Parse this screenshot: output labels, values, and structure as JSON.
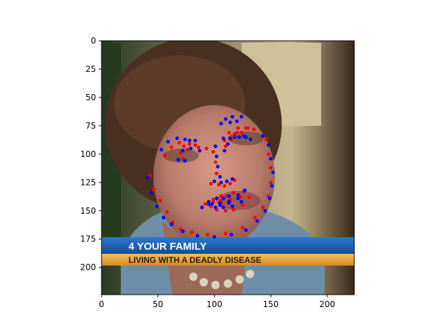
{
  "chart_data": {
    "type": "scatter",
    "title": "",
    "xlabel": "",
    "ylabel": "",
    "xlim": [
      0,
      224
    ],
    "ylim": [
      224,
      0
    ],
    "x_ticks": [
      0,
      50,
      100,
      150,
      200
    ],
    "y_ticks": [
      0,
      25,
      50,
      75,
      100,
      125,
      150,
      175,
      200
    ],
    "grid": false,
    "legend": "none",
    "background_image": {
      "description_icon": "photo-woman-face-icon",
      "caption_lines": [
        "4 YOUR FAMILY",
        "LIVING WITH A DEADLY DISEASE"
      ],
      "caption_bar_color": "#1f5fb0",
      "caption_strip_color": "#e8a93a"
    },
    "series": [
      {
        "color": "#ff0000",
        "points": [
          [
            43,
            119
          ],
          [
            46,
            131
          ],
          [
            52,
            141
          ],
          [
            58,
            151
          ],
          [
            63,
            160
          ],
          [
            70,
            166
          ],
          [
            80,
            169
          ],
          [
            94,
            171
          ],
          [
            110,
            170
          ],
          [
            125,
            165
          ],
          [
            136,
            156
          ],
          [
            143,
            147
          ],
          [
            148,
            137
          ],
          [
            150,
            125
          ],
          [
            150,
            112
          ],
          [
            148,
            100
          ],
          [
            146,
            87
          ],
          [
            72,
            104
          ],
          [
            70,
            99
          ],
          [
            73,
            93
          ],
          [
            83,
            92
          ],
          [
            93,
            95
          ],
          [
            110,
            93
          ],
          [
            115,
            87
          ],
          [
            120,
            81
          ],
          [
            128,
            77
          ],
          [
            135,
            78
          ],
          [
            99,
            98
          ],
          [
            101,
            107
          ],
          [
            102,
            117
          ],
          [
            97,
            126
          ],
          [
            104,
            127
          ],
          [
            109,
            128
          ],
          [
            114,
            126
          ],
          [
            118,
            123
          ],
          [
            56,
            101
          ],
          [
            62,
            94
          ],
          [
            69,
            90
          ],
          [
            78,
            91
          ],
          [
            86,
            94
          ],
          [
            76,
            96
          ],
          [
            109,
            88
          ],
          [
            113,
            81
          ],
          [
            121,
            77
          ],
          [
            130,
            77
          ],
          [
            124,
            81
          ],
          [
            118,
            82
          ],
          [
            92,
            144
          ],
          [
            99,
            140
          ],
          [
            106,
            137
          ],
          [
            111,
            137
          ],
          [
            117,
            134
          ],
          [
            126,
            133
          ],
          [
            131,
            138
          ],
          [
            125,
            145
          ],
          [
            117,
            149
          ],
          [
            110,
            150
          ],
          [
            102,
            149
          ],
          [
            97,
            146
          ],
          [
            99,
            142
          ],
          [
            106,
            141
          ],
          [
            114,
            140
          ],
          [
            123,
            138
          ],
          [
            114,
            141
          ],
          [
            106,
            143
          ]
        ]
      },
      {
        "color": "#0000ff",
        "points": [
          [
            41,
            121
          ],
          [
            44,
            134
          ],
          [
            49,
            146
          ],
          [
            55,
            156
          ],
          [
            62,
            162
          ],
          [
            72,
            168
          ],
          [
            85,
            172
          ],
          [
            100,
            173
          ],
          [
            115,
            171
          ],
          [
            128,
            167
          ],
          [
            138,
            159
          ],
          [
            145,
            150
          ],
          [
            149,
            139
          ],
          [
            151,
            128
          ],
          [
            152,
            116
          ],
          [
            150,
            104
          ],
          [
            148,
            92
          ],
          [
            143,
            84
          ],
          [
            74,
            106
          ],
          [
            68,
            105
          ],
          [
            72,
            97
          ],
          [
            79,
            95
          ],
          [
            87,
            97
          ],
          [
            109,
            97
          ],
          [
            112,
            91
          ],
          [
            118,
            85
          ],
          [
            126,
            84
          ],
          [
            132,
            87
          ],
          [
            101,
            93
          ],
          [
            102,
            102
          ],
          [
            103,
            111
          ],
          [
            105,
            120
          ],
          [
            100,
            124
          ],
          [
            106,
            125
          ],
          [
            111,
            124
          ],
          [
            116,
            122
          ],
          [
            53,
            96
          ],
          [
            59,
            89
          ],
          [
            67,
            86
          ],
          [
            74,
            87
          ],
          [
            83,
            88
          ],
          [
            78,
            88
          ],
          [
            106,
            73
          ],
          [
            110,
            69
          ],
          [
            116,
            67
          ],
          [
            124,
            67
          ],
          [
            120,
            71
          ],
          [
            114,
            72
          ],
          [
            89,
            147
          ],
          [
            95,
            142
          ],
          [
            102,
            139
          ],
          [
            108,
            139
          ],
          [
            113,
            137
          ],
          [
            121,
            136
          ],
          [
            127,
            132
          ],
          [
            124,
            142
          ],
          [
            116,
            146
          ],
          [
            108,
            147
          ],
          [
            101,
            147
          ],
          [
            95,
            144
          ],
          [
            98,
            144
          ],
          [
            105,
            143
          ],
          [
            113,
            142
          ],
          [
            121,
            139
          ],
          [
            113,
            143
          ],
          [
            105,
            145
          ],
          [
            108,
            86
          ],
          [
            114,
            86
          ],
          [
            122,
            85
          ],
          [
            128,
            85
          ]
        ]
      }
    ]
  }
}
